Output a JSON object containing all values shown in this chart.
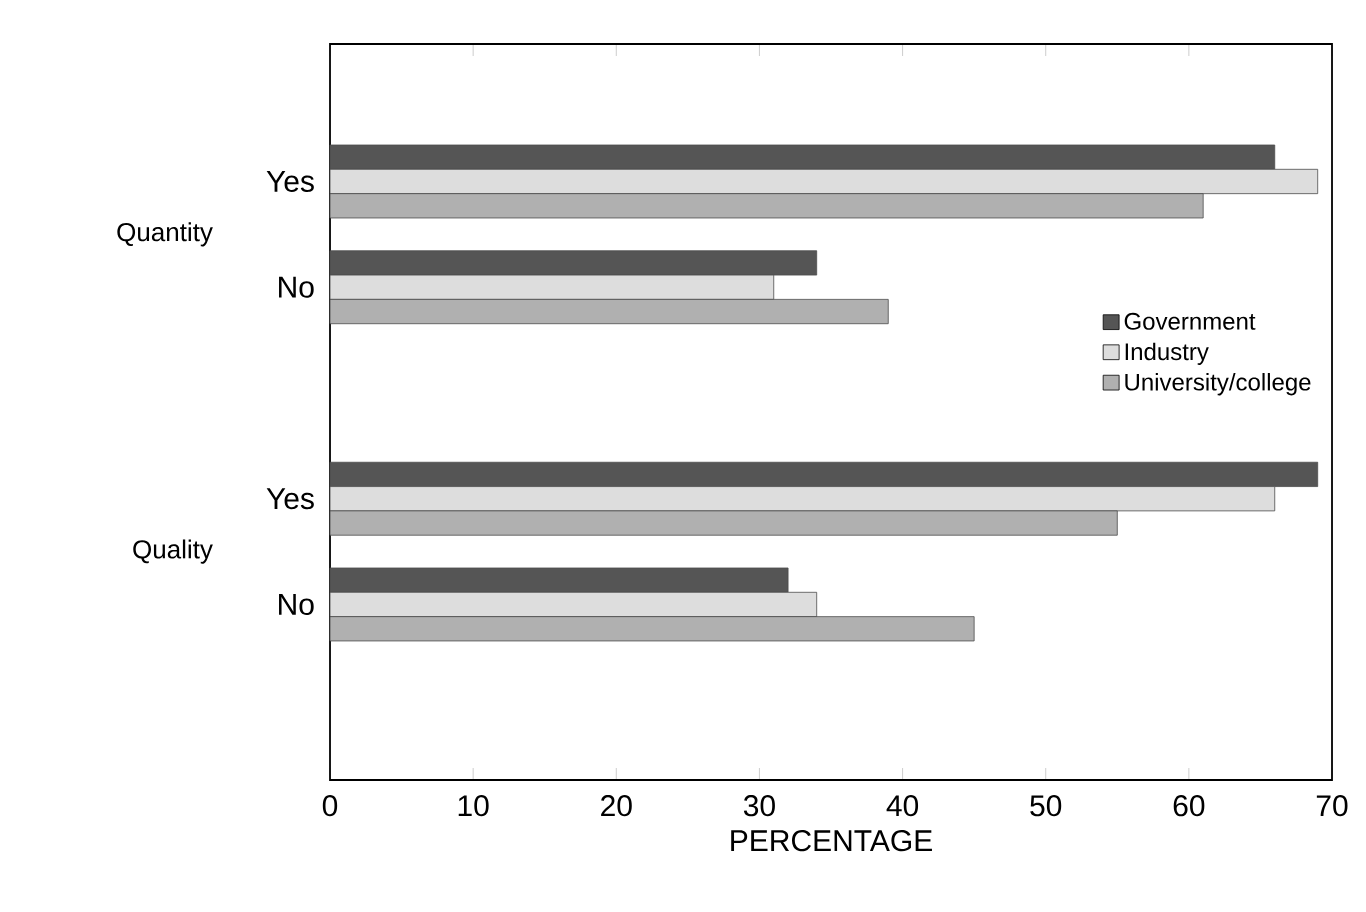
{
  "chart_data": {
    "type": "bar",
    "orientation": "horizontal",
    "xlabel": "PERCENTAGE",
    "categories": [
      "Yes",
      "No",
      "Yes",
      "No"
    ],
    "annotations": [
      "Quantity",
      "Quality"
    ],
    "series": [
      {
        "name": "Government",
        "color": "#555555",
        "values": [
          66,
          34,
          69,
          32
        ]
      },
      {
        "name": "Industry",
        "color": "#dddddd",
        "values": [
          69,
          31,
          66,
          34
        ]
      },
      {
        "name": "University/college",
        "color": "#b0b0b0",
        "values": [
          61,
          39,
          55,
          45
        ]
      }
    ],
    "xlim": [
      0,
      70
    ],
    "xticks": [
      0,
      10,
      20,
      30,
      40,
      50,
      60,
      70
    ],
    "legend": "right"
  }
}
